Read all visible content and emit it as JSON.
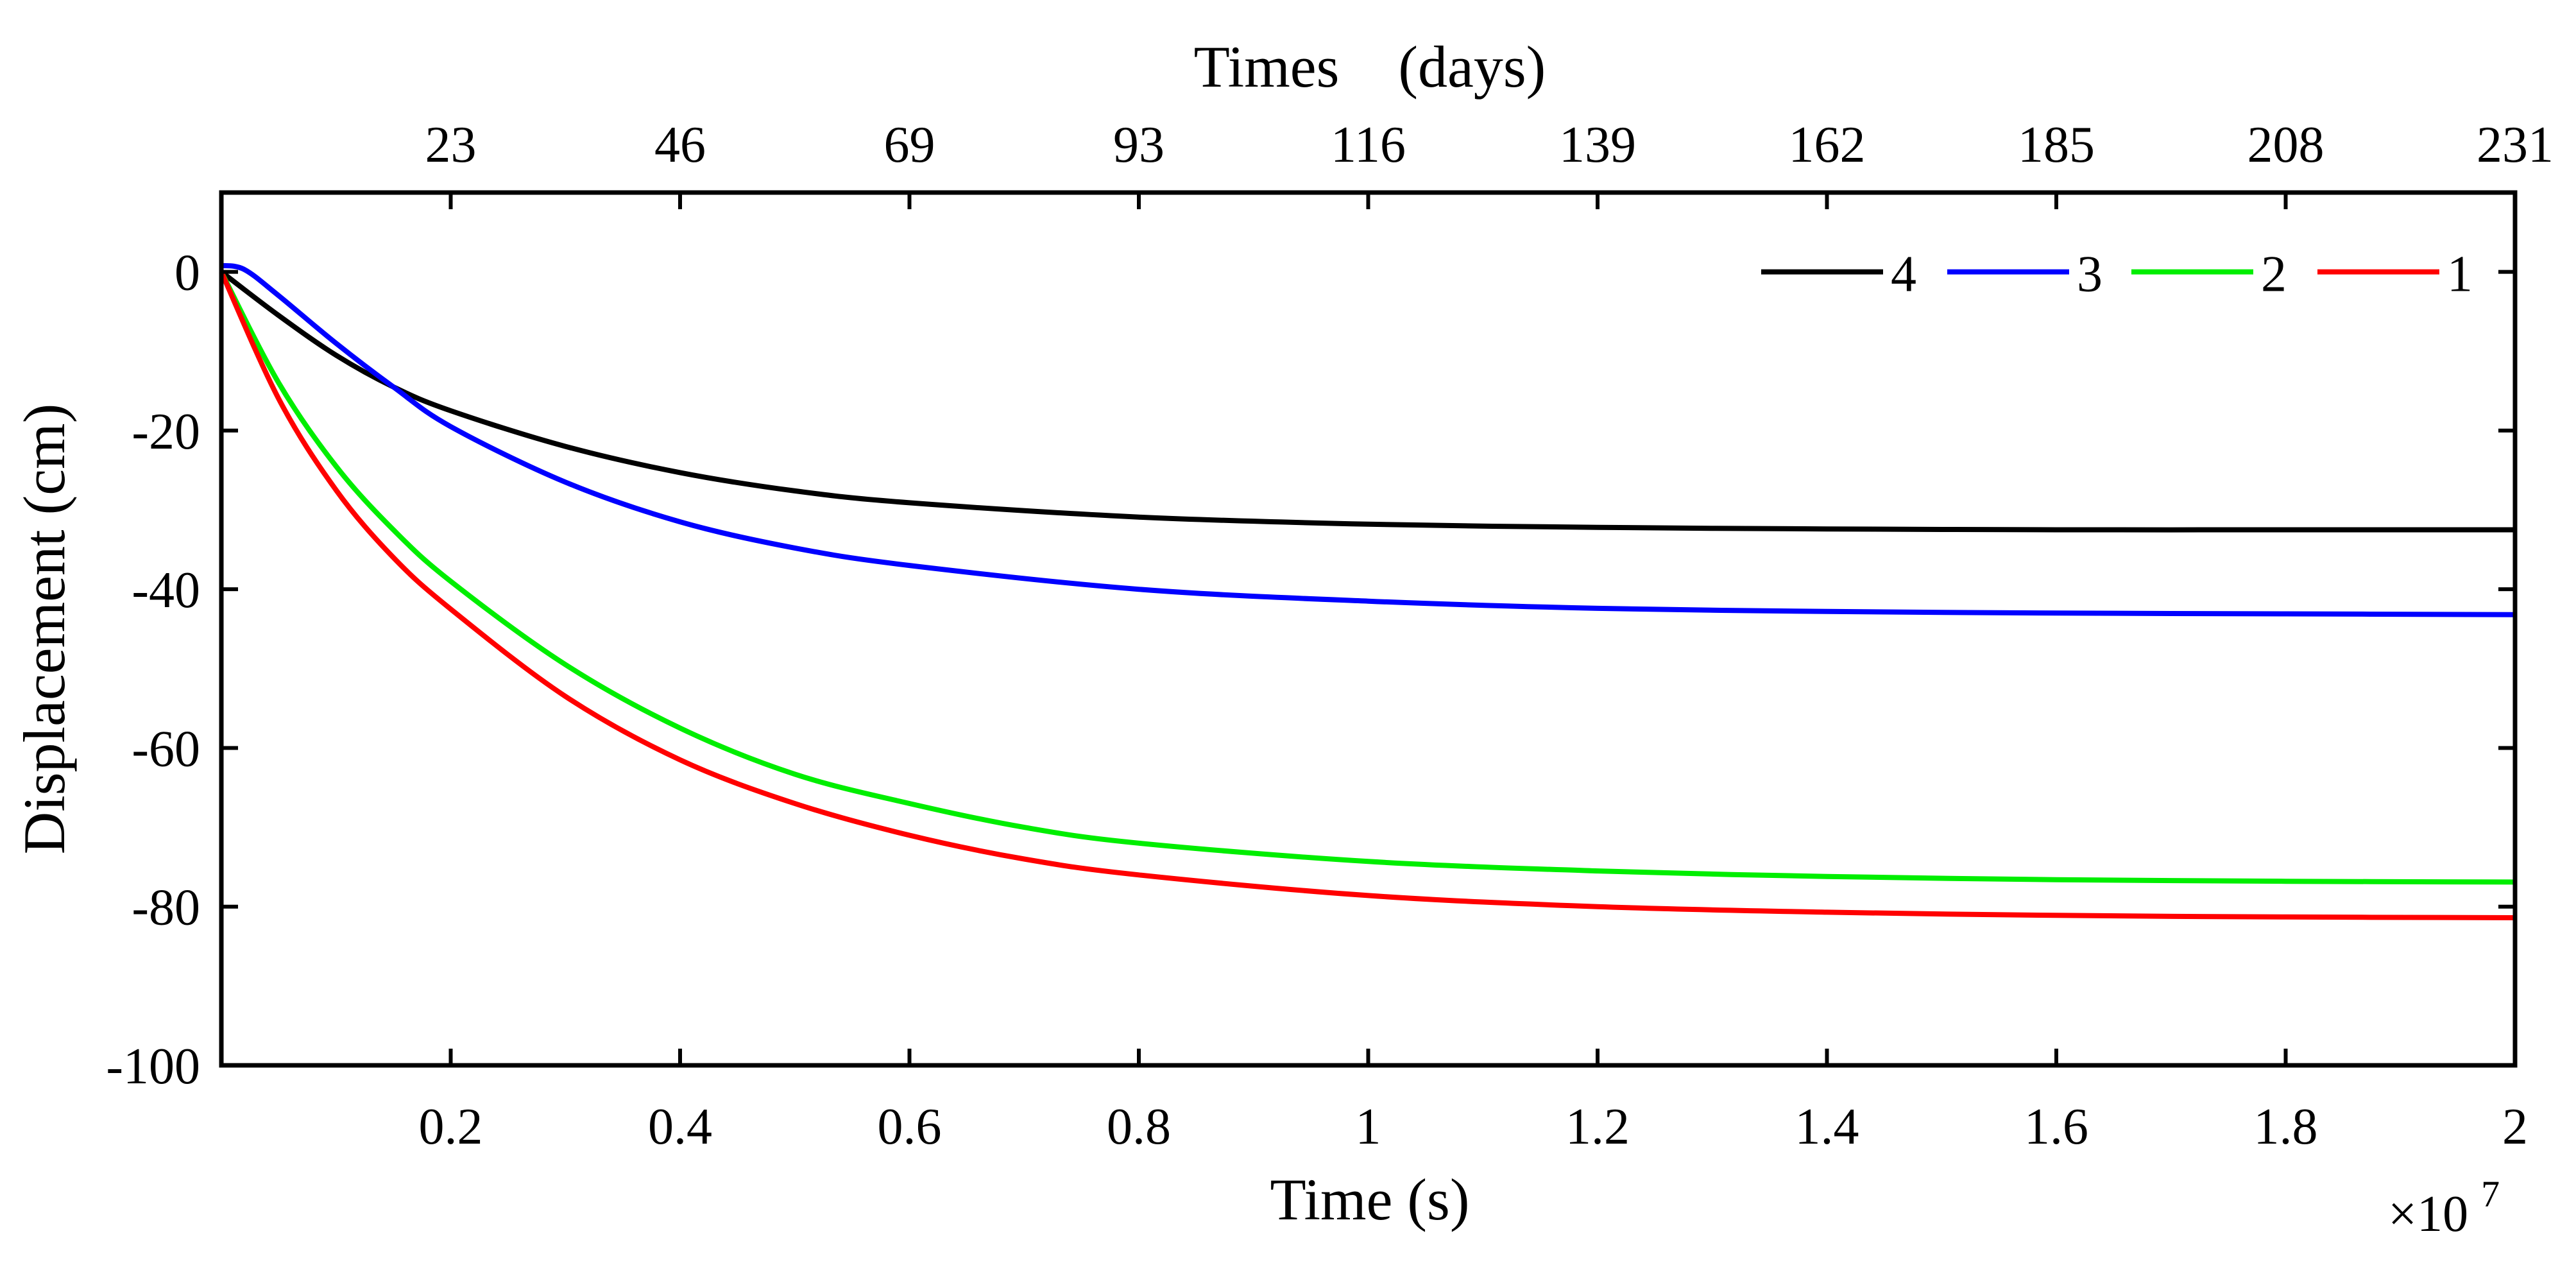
{
  "chart_data": {
    "type": "line",
    "title": "",
    "xlabel": "Time (s)",
    "ylabel": "Displacement (cm)",
    "x_multiplier_label": "×10",
    "x_multiplier_exponent": "7",
    "top_xlabel": "Times　(days)",
    "xlim": [
      0,
      2
    ],
    "ylim": [
      -100,
      10
    ],
    "x_ticks": [
      0.2,
      0.4,
      0.6,
      0.8,
      1,
      1.2,
      1.4,
      1.6,
      1.8,
      2
    ],
    "x_tick_labels": [
      "0.2",
      "0.4",
      "0.6",
      "0.8",
      "1",
      "1.2",
      "1.4",
      "1.6",
      "1.8",
      "2"
    ],
    "top_x_tick_labels": [
      "23",
      "46",
      "69",
      "93",
      "116",
      "139",
      "162",
      "185",
      "208",
      "231"
    ],
    "y_ticks": [
      0,
      -20,
      -40,
      -60,
      -80,
      -100
    ],
    "y_tick_labels": [
      "0",
      "-20",
      "-40",
      "-60",
      "-80",
      "-100"
    ],
    "legend_position": "top-right",
    "grid": false,
    "series": [
      {
        "name": "4",
        "color": "#000000",
        "x": [
          0,
          0.05,
          0.1,
          0.15,
          0.2,
          0.3,
          0.4,
          0.5,
          0.6,
          0.8,
          1.0,
          1.2,
          1.4,
          1.6,
          1.8,
          2.0
        ],
        "y": [
          0,
          -5.5,
          -10.5,
          -14.5,
          -17.5,
          -22,
          -25.3,
          -27.6,
          -29.1,
          -30.9,
          -31.8,
          -32.2,
          -32.4,
          -32.5,
          -32.5,
          -32.5
        ]
      },
      {
        "name": "3",
        "color": "#0000ff",
        "x": [
          0,
          0.02,
          0.05,
          0.1,
          0.15,
          0.2,
          0.3,
          0.4,
          0.5,
          0.6,
          0.8,
          1.0,
          1.2,
          1.4,
          1.6,
          1.8,
          2.0
        ],
        "y": [
          0.8,
          0.3,
          -3,
          -9,
          -14.5,
          -19.5,
          -26.5,
          -31.5,
          -34.8,
          -37,
          -40,
          -41.5,
          -42.4,
          -42.8,
          -43,
          -43.1,
          -43.2
        ]
      },
      {
        "name": "2",
        "color": "#00ee00",
        "x": [
          0,
          0.05,
          0.1,
          0.15,
          0.2,
          0.3,
          0.4,
          0.5,
          0.6,
          0.7,
          0.8,
          1.0,
          1.2,
          1.4,
          1.6,
          1.8,
          2.0
        ],
        "y": [
          0,
          -14,
          -24.5,
          -32.5,
          -39,
          -49.5,
          -57.5,
          -63.3,
          -67,
          -70,
          -72,
          -74.3,
          -75.5,
          -76.2,
          -76.6,
          -76.8,
          -76.9
        ]
      },
      {
        "name": "1",
        "color": "#ff0000",
        "x": [
          0,
          0.05,
          0.1,
          0.15,
          0.2,
          0.3,
          0.4,
          0.5,
          0.6,
          0.7,
          0.8,
          1.0,
          1.2,
          1.4,
          1.6,
          1.8,
          2.0
        ],
        "y": [
          0,
          -16,
          -27.5,
          -36,
          -42.5,
          -53.5,
          -61.5,
          -67,
          -71,
          -74,
          -76,
          -78.6,
          -80,
          -80.7,
          -81.1,
          -81.3,
          -81.4
        ]
      }
    ]
  }
}
